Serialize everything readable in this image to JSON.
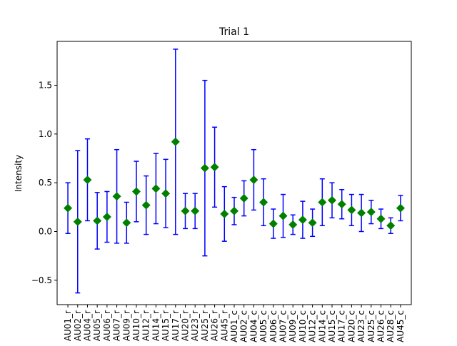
{
  "chart_data": {
    "type": "scatter",
    "title": "Trial 1",
    "xlabel": "",
    "ylabel": "Intensity",
    "ylim": [
      -0.75,
      1.95
    ],
    "yticks": [
      -0.5,
      0.0,
      0.5,
      1.0,
      1.5
    ],
    "ytick_labels": [
      "−0.5",
      "0.0",
      "0.5",
      "1.0",
      "1.5"
    ],
    "grid": false,
    "legend": null,
    "categories": [
      "AU01_r",
      "AU02_r",
      "AU04_r",
      "AU05_r",
      "AU06_r",
      "AU07_r",
      "AU09_r",
      "AU10_r",
      "AU12_r",
      "AU14_r",
      "AU15_r",
      "AU17_r",
      "AU20_r",
      "AU23_r",
      "AU25_r",
      "AU26_r",
      "AU45_r",
      "AU01_c",
      "AU02_c",
      "AU04_c",
      "AU05_c",
      "AU06_c",
      "AU07_c",
      "AU09_c",
      "AU10_c",
      "AU12_c",
      "AU14_c",
      "AU15_c",
      "AU17_c",
      "AU20_c",
      "AU23_c",
      "AU25_c",
      "AU26_c",
      "AU28_c",
      "AU45_c"
    ],
    "series": [
      {
        "marker": "diamond",
        "marker_color": "#008000",
        "errorbar_color": "#0000ff",
        "values": [
          0.24,
          0.1,
          0.53,
          0.11,
          0.15,
          0.36,
          0.09,
          0.41,
          0.27,
          0.44,
          0.39,
          0.92,
          0.21,
          0.21,
          0.65,
          0.66,
          0.18,
          0.21,
          0.34,
          0.53,
          0.3,
          0.08,
          0.16,
          0.07,
          0.12,
          0.09,
          0.3,
          0.32,
          0.28,
          0.22,
          0.19,
          0.2,
          0.13,
          0.06,
          0.24
        ],
        "errors": [
          0.26,
          0.73,
          0.42,
          0.29,
          0.26,
          0.48,
          0.21,
          0.31,
          0.3,
          0.36,
          0.35,
          0.95,
          0.18,
          0.18,
          0.9,
          0.41,
          0.28,
          0.14,
          0.18,
          0.31,
          0.24,
          0.15,
          0.22,
          0.1,
          0.19,
          0.14,
          0.24,
          0.18,
          0.15,
          0.16,
          0.19,
          0.12,
          0.1,
          0.08,
          0.13
        ]
      }
    ]
  }
}
